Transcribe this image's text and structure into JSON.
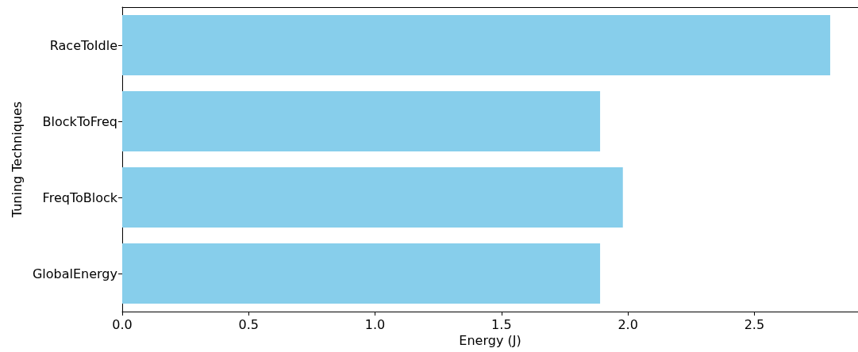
{
  "chart_data": {
    "type": "bar",
    "orientation": "horizontal",
    "xlabel": "Energy (J)",
    "ylabel": "Tuning Techniques",
    "categories": [
      "RaceToIdle",
      "BlockToFreq",
      "FreqToBlock",
      "GlobalEnergy"
    ],
    "values": [
      2.8,
      1.89,
      1.98,
      1.89
    ],
    "color": "#87ceeb",
    "xlim": [
      0,
      2.91
    ],
    "xticks": [
      {
        "value": 0,
        "label": "0.0"
      },
      0.5,
      {
        "value": 1,
        "label": "1.0"
      },
      1.5,
      {
        "value": 2,
        "label": "2.0"
      },
      2.5
    ]
  }
}
